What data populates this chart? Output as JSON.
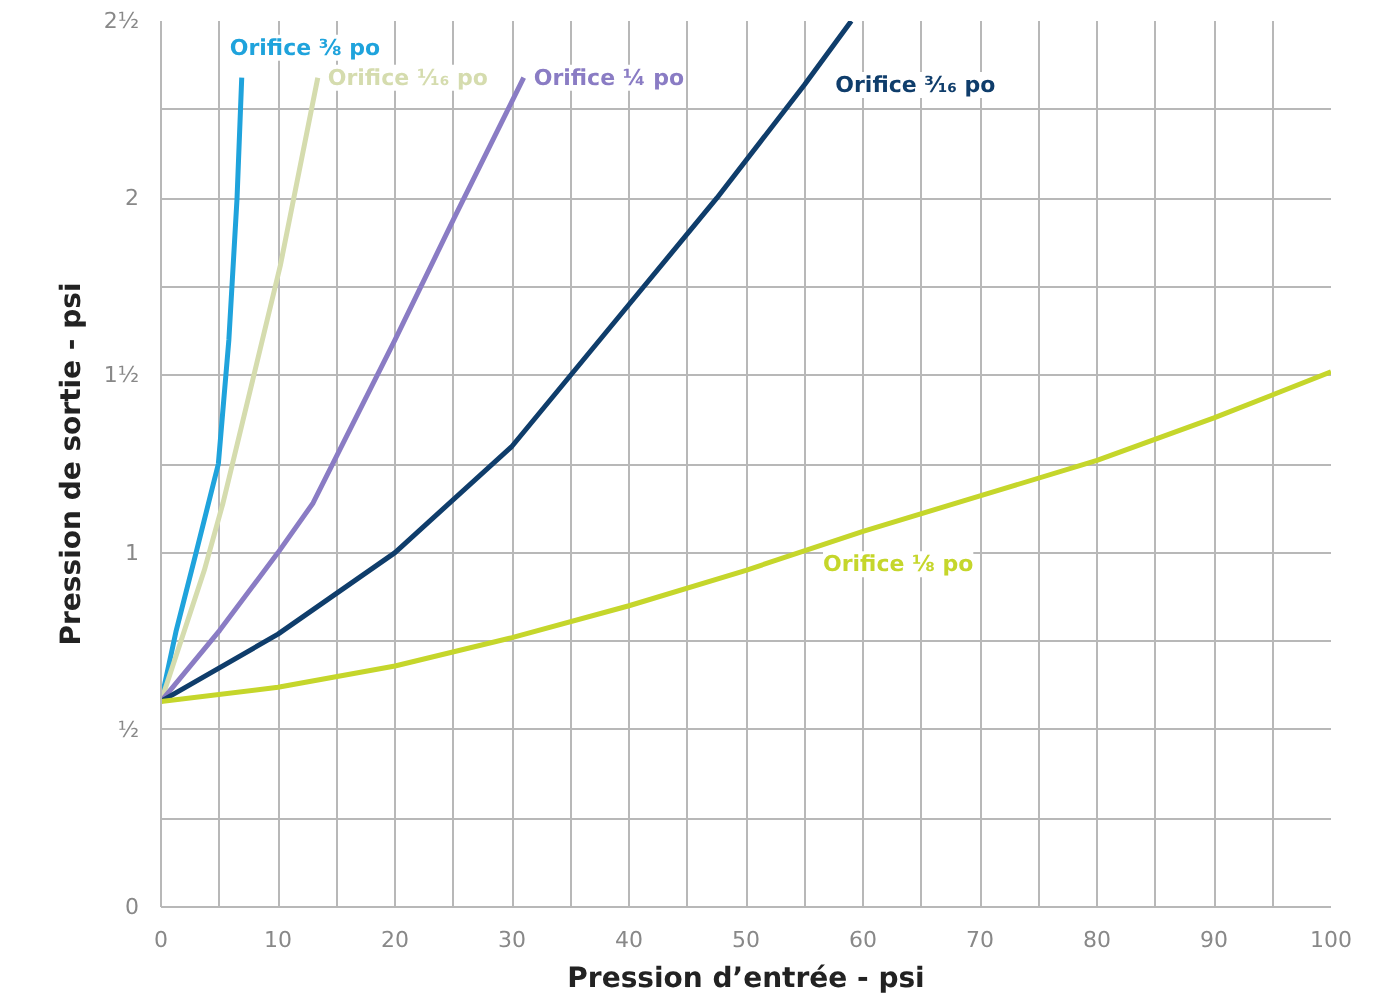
{
  "chart_data": {
    "type": "line",
    "xlabel": "Pression d’entrée - psi",
    "ylabel": "Pression de sortie - psi",
    "xlim": [
      0,
      100
    ],
    "ylim": [
      0,
      2.5
    ],
    "xticks": [
      0,
      {
        "value": 5,
        "label": null
      },
      10,
      {
        "value": 15,
        "label": null
      },
      20,
      {
        "value": 25,
        "label": null
      },
      30,
      {
        "value": 35,
        "label": null
      },
      40,
      {
        "value": 45,
        "label": null
      },
      50,
      {
        "value": 55,
        "label": null
      },
      60,
      {
        "value": 65,
        "label": null
      },
      70,
      {
        "value": 75,
        "label": null
      },
      80,
      {
        "value": 85,
        "label": null
      },
      90,
      {
        "value": 95,
        "label": null
      },
      100
    ],
    "yticks": [
      0,
      {
        "value": 0.25,
        "label": null
      },
      {
        "value": 0.5,
        "label": "½"
      },
      {
        "value": 0.75,
        "label": null
      },
      1,
      {
        "value": 1.25,
        "label": null
      },
      {
        "value": 1.5,
        "label": "1½"
      },
      {
        "value": 1.75,
        "label": null
      },
      2,
      {
        "value": 2.25,
        "label": null
      },
      {
        "value": 2.5,
        "label": "2½"
      }
    ],
    "grid": true,
    "marker": "none",
    "line_style": "solid",
    "series": [
      {
        "name": "Orifice ⅜ po",
        "color": "#1fa3dc",
        "x": [
          0,
          1.3,
          3,
          4.9,
          5.8,
          6.5,
          6.9
        ],
        "values": [
          0.58,
          0.78,
          1.0,
          1.25,
          1.6,
          2.0,
          2.34
        ]
      },
      {
        "name": "Orifice ¹⁄₁₆ po",
        "color": "#d5dcae",
        "x": [
          0,
          3.7,
          5.3,
          10.2,
          13.4
        ],
        "values": [
          0.58,
          0.95,
          1.14,
          1.81,
          2.34
        ]
      },
      {
        "name": "Orifice ¼ po",
        "color": "#8a7cc4",
        "x": [
          0,
          5,
          10,
          13,
          20,
          25,
          31
        ],
        "values": [
          0.58,
          0.78,
          1.0,
          1.14,
          1.6,
          1.94,
          2.34
        ]
      },
      {
        "name": "Orifice ³⁄₁₆ po",
        "color": "#0f3d6b",
        "x": [
          0,
          10,
          20,
          30,
          40,
          47.5,
          55,
          59
        ],
        "values": [
          0.58,
          0.77,
          1.0,
          1.3,
          1.7,
          2.0,
          2.32,
          2.5
        ]
      },
      {
        "name": "Orifice ⅛ po",
        "color": "#c5d62b",
        "x": [
          0,
          10,
          20,
          30,
          40,
          50,
          60,
          70,
          80,
          90,
          100
        ],
        "values": [
          0.58,
          0.62,
          0.68,
          0.76,
          0.85,
          0.95,
          1.06,
          1.16,
          1.26,
          1.38,
          1.51
        ]
      }
    ]
  }
}
